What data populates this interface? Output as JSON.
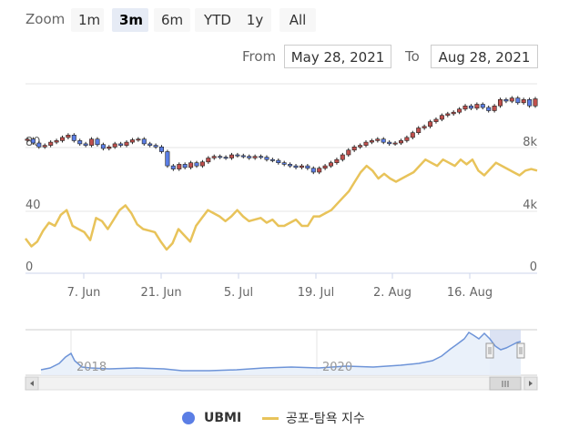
{
  "zoom": {
    "label": "Zoom",
    "buttons": [
      "1m",
      "3m",
      "6m",
      "YTD",
      "1y",
      "All"
    ],
    "active": "3m"
  },
  "range": {
    "from_label": "From",
    "from_value": "May 28, 2021",
    "to_label": "To",
    "to_value": "Aug 28, 2021"
  },
  "colors": {
    "up": "#c0504d",
    "down": "#5b7ee5",
    "fear_greed": "#e8c35a",
    "navigator_fill": "#e8effa",
    "navigator_line": "#6e94d8",
    "selection": "#cfd8ef"
  },
  "chart_data": {
    "type": "line",
    "x_tick_labels": [
      "7. Jun",
      "21. Jun",
      "5. Jul",
      "19. Jul",
      "2. Aug",
      "16. Aug"
    ],
    "left_axis": {
      "tick_labels": [
        "0",
        "40",
        "80"
      ],
      "ylim": [
        0,
        120
      ]
    },
    "right_axis": {
      "tick_labels": [
        "0",
        "4k",
        "8k"
      ],
      "ylim": [
        0,
        12000
      ]
    },
    "navigator": {
      "tick_labels": [
        "2018",
        "2020"
      ]
    },
    "series": [
      {
        "name": "UBMI",
        "kind": "candlestick",
        "axis": "right",
        "close": [
          8500,
          8250,
          8000,
          8100,
          8300,
          8400,
          8600,
          8750,
          8400,
          8200,
          8100,
          8500,
          8150,
          7900,
          8000,
          8200,
          8100,
          8300,
          8450,
          8500,
          8200,
          8100,
          8000,
          7700,
          6800,
          6600,
          6900,
          6700,
          7000,
          6800,
          7050,
          7300,
          7400,
          7350,
          7300,
          7500,
          7450,
          7400,
          7300,
          7400,
          7350,
          7200,
          7150,
          7000,
          6900,
          6800,
          6700,
          6800,
          6650,
          6400,
          6650,
          6800,
          7000,
          7200,
          7500,
          7800,
          8000,
          8100,
          8300,
          8400,
          8500,
          8300,
          8200,
          8250,
          8400,
          8600,
          8900,
          9200,
          9300,
          9600,
          9750,
          10000,
          10100,
          10200,
          10400,
          10600,
          10450,
          10700,
          10500,
          10300,
          10600,
          11000,
          10900,
          11100,
          10800,
          11000,
          10600,
          11050
        ]
      },
      {
        "name": "공포-탐욕 지수",
        "kind": "line",
        "axis": "left",
        "values": [
          22,
          17,
          20,
          27,
          32,
          30,
          37,
          40,
          30,
          28,
          26,
          21,
          35,
          33,
          28,
          34,
          40,
          43,
          38,
          31,
          28,
          27,
          26,
          20,
          15,
          19,
          28,
          24,
          20,
          30,
          35,
          40,
          38,
          36,
          33,
          36,
          40,
          36,
          33,
          34,
          35,
          32,
          34,
          30,
          30,
          32,
          34,
          30,
          30,
          36,
          36,
          38,
          40,
          44,
          48,
          52,
          58,
          64,
          68,
          65,
          60,
          63,
          60,
          58,
          60,
          62,
          64,
          68,
          72,
          70,
          68,
          72,
          70,
          68,
          72,
          69,
          72,
          65,
          62,
          66,
          70,
          68,
          66,
          64,
          62,
          65,
          66,
          65
        ]
      }
    ]
  }
}
